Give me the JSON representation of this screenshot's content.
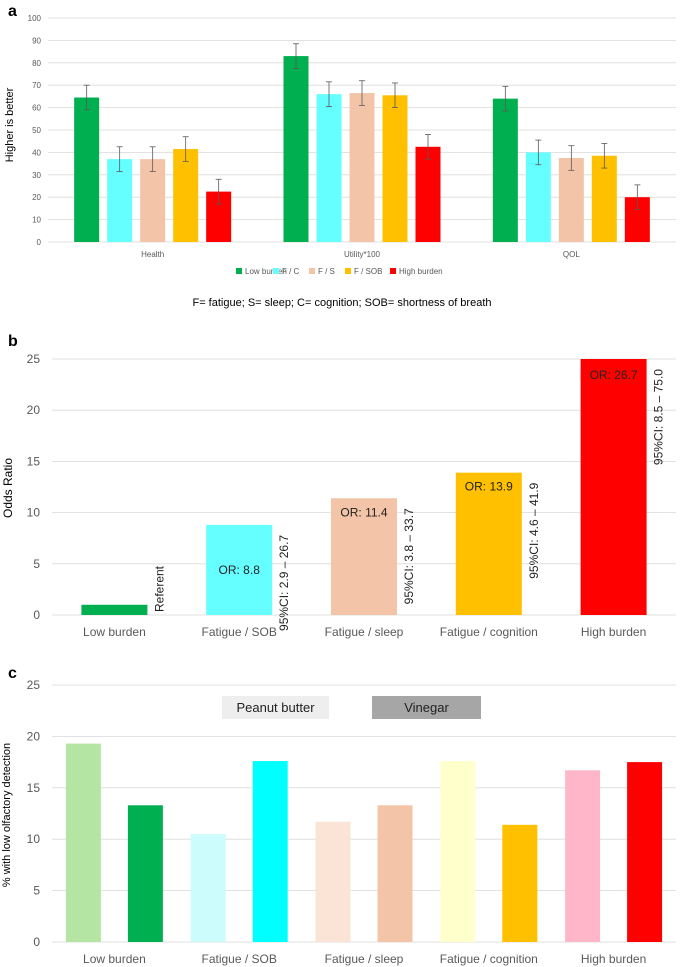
{
  "chart_data": [
    {
      "panel": "a",
      "type": "bar",
      "ylabel": "Higher is better",
      "ylim": [
        0,
        100
      ],
      "yticks": [
        0,
        10,
        20,
        30,
        40,
        50,
        60,
        70,
        80,
        90,
        100
      ],
      "categories": [
        "Health",
        "Utility*100",
        "QOL"
      ],
      "series": [
        {
          "name": "Low burden",
          "color": "#00b050",
          "values": [
            64.5,
            83,
            64
          ],
          "err": [
            5.5,
            5.5,
            5.5
          ]
        },
        {
          "name": "F / C",
          "color": "#66ffff",
          "values": [
            37,
            66,
            40
          ],
          "err": [
            5.5,
            5.5,
            5.5
          ]
        },
        {
          "name": "F / S",
          "color": "#f4c4a8",
          "values": [
            37,
            66.5,
            37.5
          ],
          "err": [
            5.5,
            5.5,
            5.5
          ]
        },
        {
          "name": "F / SOB",
          "color": "#ffc000",
          "values": [
            41.5,
            65.5,
            38.5
          ],
          "err": [
            5.5,
            5.5,
            5.5
          ]
        },
        {
          "name": "High burden",
          "color": "#ff0000",
          "values": [
            22.5,
            42.5,
            20
          ],
          "err": [
            5.5,
            5.5,
            5.5
          ]
        }
      ],
      "footnote": "F= fatigue; S= sleep; C= cognition; SOB= shortness of breath"
    },
    {
      "panel": "b",
      "type": "bar",
      "ylabel": "Odds Ratio",
      "ylim": [
        0,
        25
      ],
      "yticks": [
        0,
        5,
        10,
        15,
        20,
        25
      ],
      "categories": [
        "Low burden",
        "Fatigue / SOB",
        "Fatigue / sleep",
        "Fatigue / cognition",
        "High burden"
      ],
      "values": [
        1,
        8.8,
        11.4,
        13.9,
        26.7
      ],
      "colors": [
        "#00b050",
        "#66ffff",
        "#f4c4a8",
        "#ffc000",
        "#ff0000"
      ],
      "bar_labels": [
        "",
        "OR: 8.8",
        "OR: 11.4",
        "OR: 13.9",
        "OR: 26.7"
      ],
      "side_labels": [
        "Referent",
        "95%CI: 2.9 – 26.7",
        "95%CI: 3.8 – 33.7",
        "95%CI: 4.6 – 41.9",
        "95%CI: 8.5 – 75.0"
      ]
    },
    {
      "panel": "c",
      "type": "bar",
      "ylabel": "% with low olfactory detection",
      "ylim": [
        0,
        25
      ],
      "yticks": [
        0,
        5,
        10,
        15,
        20,
        25
      ],
      "categories": [
        "Low burden",
        "Fatigue / SOB",
        "Fatigue / sleep",
        "Fatigue / cognition",
        "High burden"
      ],
      "series": [
        {
          "name": "Peanut butter",
          "values": [
            19.3,
            10.5,
            11.7,
            17.6,
            16.7
          ],
          "colors": [
            "#b4e5a2",
            "#ccfcfc",
            "#fbe4d6",
            "#ffffcc",
            "#ffb6c9"
          ],
          "legend_color": "#eeeeee"
        },
        {
          "name": "Vinegar",
          "values": [
            13.3,
            17.6,
            13.3,
            11.4,
            17.5
          ],
          "colors": [
            "#00b050",
            "#00ffff",
            "#f4c4a8",
            "#ffc000",
            "#ff0000"
          ],
          "legend_color": "#a6a6a6"
        }
      ]
    }
  ]
}
